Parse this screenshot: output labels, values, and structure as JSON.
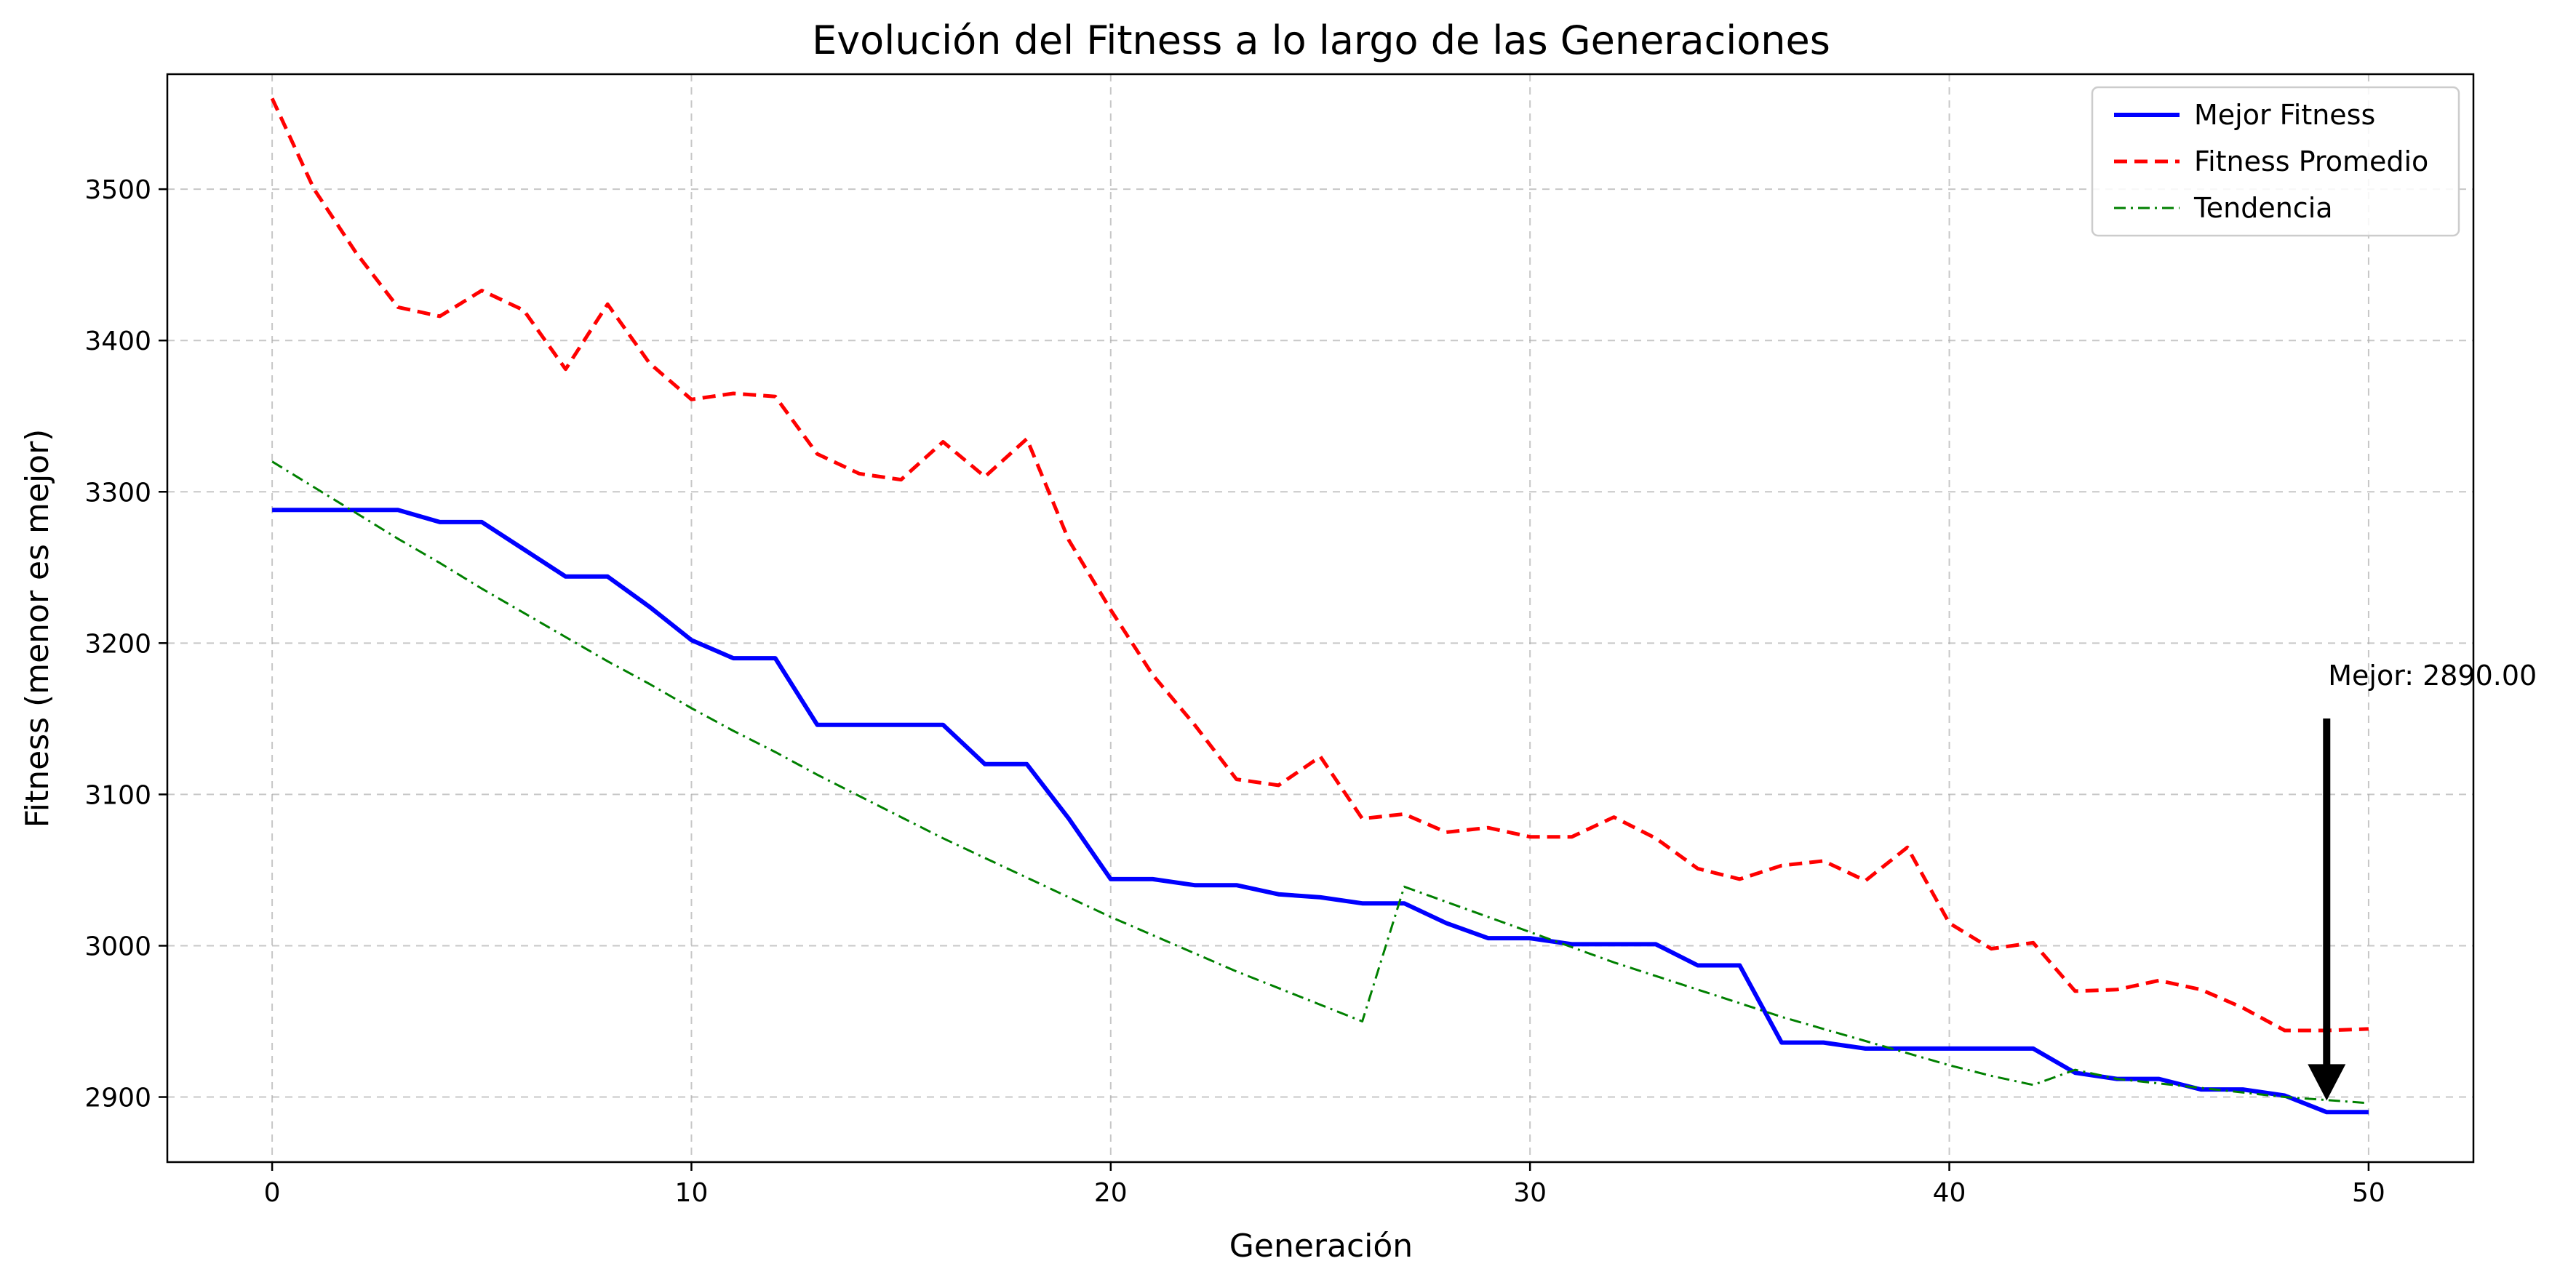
{
  "chart_data": {
    "type": "line",
    "title": "Evolución del Fitness a lo largo de las Generaciones",
    "xlabel": "Generación",
    "ylabel": "Fitness (menor es mejor)",
    "xlim": [
      -2.5,
      52.5
    ],
    "ylim": [
      2857,
      3576
    ],
    "xticks": [
      0,
      10,
      20,
      30,
      40,
      50
    ],
    "yticks": [
      2900,
      3000,
      3100,
      3200,
      3300,
      3400,
      3500
    ],
    "grid": true,
    "legend_position": "top-right",
    "x": [
      0,
      1,
      2,
      3,
      4,
      5,
      6,
      7,
      8,
      9,
      10,
      11,
      12,
      13,
      14,
      15,
      16,
      17,
      18,
      19,
      20,
      21,
      22,
      23,
      24,
      25,
      26,
      27,
      28,
      29,
      30,
      31,
      32,
      33,
      34,
      35,
      36,
      37,
      38,
      39,
      40,
      41,
      42,
      43,
      44,
      45,
      46,
      47,
      48,
      49,
      50
    ],
    "series": [
      {
        "name": "Mejor Fitness",
        "color": "#0000ff",
        "style": "solid",
        "values": [
          3288,
          3288,
          3288,
          3288,
          3280,
          3280,
          3262,
          3244,
          3244,
          3224,
          3202,
          3190,
          3190,
          3146,
          3146,
          3146,
          3146,
          3120,
          3120,
          3084,
          3044,
          3044,
          3040,
          3040,
          3034,
          3032,
          3028,
          3028,
          3015,
          3005,
          3005,
          3001,
          3001,
          3001,
          2987,
          2987,
          2936,
          2936,
          2932,
          2932,
          2932,
          2932,
          2932,
          2916,
          2912,
          2912,
          2905,
          2905,
          2901,
          2890,
          2890
        ]
      },
      {
        "name": "Fitness Promedio",
        "color": "#ff0000",
        "style": "dashed",
        "values": [
          3560,
          3500,
          3458,
          3422,
          3416,
          3433,
          3420,
          3381,
          3424,
          3385,
          3361,
          3365,
          3363,
          3325,
          3312,
          3308,
          3333,
          3310,
          3335,
          3268,
          3222,
          3179,
          3146,
          3110,
          3106,
          3125,
          3084,
          3087,
          3075,
          3078,
          3072,
          3072,
          3085,
          3071,
          3051,
          3044,
          3053,
          3056,
          3043,
          3065,
          3015,
          2998,
          3002,
          2970,
          2971,
          2977,
          2971,
          2959,
          2944,
          2944,
          2945
        ]
      },
      {
        "name": "Tendencia",
        "color": "#008000",
        "style": "dashdot",
        "values": [
          3320,
          3303,
          3286,
          3269,
          3253,
          3236,
          3220,
          3204,
          3188,
          3173,
          3157,
          3142,
          3128,
          3113,
          3099,
          3085,
          3071,
          3058,
          3045,
          3032,
          3019,
          3007,
          2995,
          2983,
          2972,
          2961,
          2950,
          3039,
          3029,
          3019,
          3009,
          2999,
          2989,
          2980,
          2971,
          2962,
          2953,
          2945,
          2937,
          2929,
          2921,
          2914,
          2908,
          2918,
          2912,
          2909,
          2906,
          2903,
          2900,
          2898,
          2896
        ]
      }
    ],
    "annotation": {
      "text": "Mejor: 2890.00",
      "x": 49,
      "y": 2890
    }
  }
}
